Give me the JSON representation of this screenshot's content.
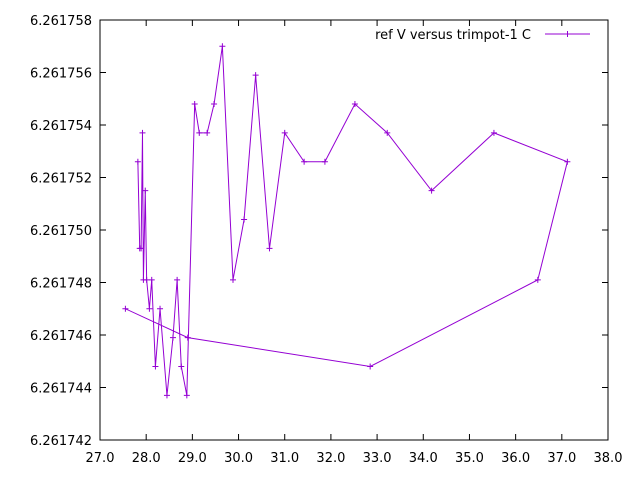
{
  "chart_data": {
    "type": "line",
    "title": "",
    "xlabel": "",
    "ylabel": "",
    "xlim": [
      27.0,
      38.0
    ],
    "ylim": [
      6.261742,
      6.261758
    ],
    "xticks": [
      "27.0",
      "28.0",
      "29.0",
      "30.0",
      "31.0",
      "32.0",
      "33.0",
      "34.0",
      "35.0",
      "36.0",
      "37.0",
      "38.0"
    ],
    "yticks": [
      "6.261742",
      "6.261744",
      "6.261746",
      "6.261748",
      "6.261750",
      "6.261752",
      "6.261754",
      "6.261756",
      "6.261758"
    ],
    "grid": false,
    "legend_position": "top-right",
    "colors": {
      "series": "#9400d3",
      "axis": "#000000"
    },
    "series": [
      {
        "name": "ref V versus trimpot-1 C",
        "marker": "plus",
        "points": [
          [
            27.55,
            6.261747
          ],
          [
            28.9,
            6.2617459
          ],
          [
            32.85,
            6.2617448
          ],
          [
            36.48,
            6.2617481
          ],
          [
            37.12,
            6.2617526
          ],
          [
            35.53,
            6.2617537
          ],
          [
            34.18,
            6.2617515
          ],
          [
            33.22,
            6.2617537
          ],
          [
            32.52,
            6.2617548
          ],
          [
            31.87,
            6.2617526
          ],
          [
            31.42,
            6.2617526
          ],
          [
            31.0,
            6.2617537
          ],
          [
            30.67,
            6.2617493
          ],
          [
            30.37,
            6.2617559
          ],
          [
            30.12,
            6.2617504
          ],
          [
            29.88,
            6.2617481
          ],
          [
            29.65,
            6.261757
          ],
          [
            29.47,
            6.2617548
          ],
          [
            29.32,
            6.2617537
          ],
          [
            29.15,
            6.2617537
          ],
          [
            29.05,
            6.2617548
          ],
          [
            28.88,
            6.2617437
          ],
          [
            28.76,
            6.2617448
          ],
          [
            28.67,
            6.2617481
          ],
          [
            28.58,
            6.2617459
          ],
          [
            28.45,
            6.2617437
          ],
          [
            28.3,
            6.261747
          ],
          [
            28.2,
            6.2617448
          ],
          [
            28.12,
            6.2617481
          ],
          [
            28.07,
            6.261747
          ],
          [
            28.01,
            6.2617481
          ],
          [
            27.98,
            6.2617515
          ],
          [
            27.94,
            6.2617481
          ],
          [
            27.92,
            6.2617537
          ],
          [
            27.89,
            6.2617493
          ],
          [
            27.86,
            6.2617493
          ],
          [
            27.82,
            6.2617526
          ]
        ]
      }
    ]
  }
}
